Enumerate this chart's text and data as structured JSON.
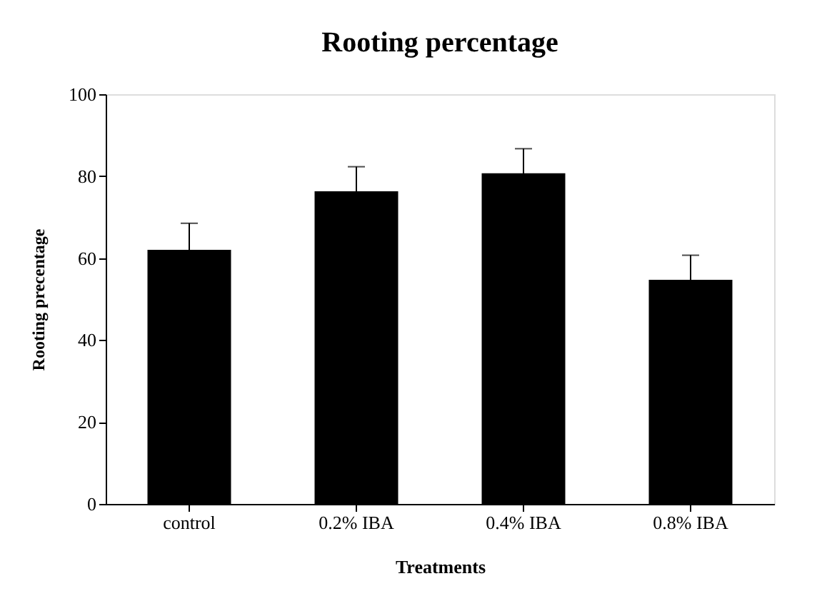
{
  "chart_data": {
    "type": "bar",
    "title": "Rooting percentage",
    "xlabel": "Treatments",
    "ylabel": "Rooting precentage",
    "categories": [
      "control",
      "0.2% IBA",
      "0.4% IBA",
      "0.8% IBA"
    ],
    "series": [
      {
        "color": "#000000",
        "values": [
          62,
          76.3,
          80.7,
          54.7
        ],
        "errors": [
          6.5,
          6,
          6,
          6
        ]
      }
    ],
    "ylim": [
      0,
      100
    ],
    "yticks": [
      0,
      20,
      40,
      60,
      80,
      100
    ],
    "grid": false,
    "legend": false
  }
}
